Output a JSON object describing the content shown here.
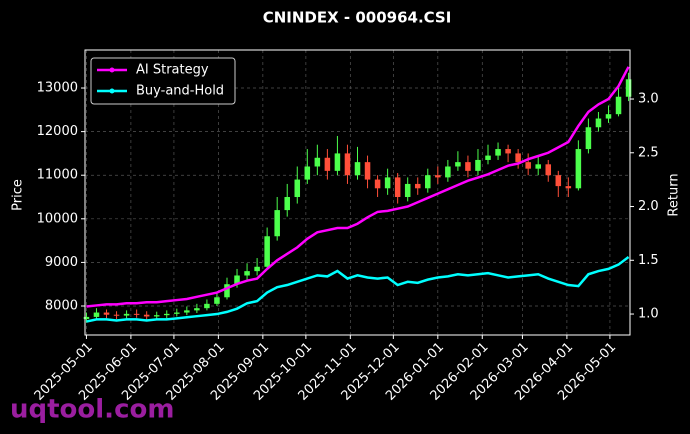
{
  "chart_data": {
    "type": "candlestick",
    "title": "CNINDEX - 000964.CSI",
    "ylabel": "Price",
    "y2label": "Return",
    "watermark": "uqtool.com",
    "x": [
      "2025-05-01",
      "2025-05-08",
      "2025-05-15",
      "2025-05-22",
      "2025-05-29",
      "2025-06-05",
      "2025-06-12",
      "2025-06-19",
      "2025-06-26",
      "2025-07-03",
      "2025-07-10",
      "2025-07-17",
      "2025-07-24",
      "2025-07-31",
      "2025-08-07",
      "2025-08-14",
      "2025-08-21",
      "2025-08-28",
      "2025-09-04",
      "2025-09-11",
      "2025-09-18",
      "2025-09-25",
      "2025-10-02",
      "2025-10-09",
      "2025-10-16",
      "2025-10-23",
      "2025-10-30",
      "2025-11-06",
      "2025-11-13",
      "2025-11-20",
      "2025-11-27",
      "2025-12-04",
      "2025-12-11",
      "2025-12-18",
      "2025-12-25",
      "2026-01-01",
      "2026-01-08",
      "2026-01-15",
      "2026-01-22",
      "2026-01-29",
      "2026-02-05",
      "2026-02-12",
      "2026-02-19",
      "2026-02-26",
      "2026-03-05",
      "2026-03-12",
      "2026-03-19",
      "2026-03-26",
      "2026-04-02",
      "2026-04-09",
      "2026-04-16",
      "2026-04-23",
      "2026-04-30",
      "2026-05-07",
      "2026-05-14"
    ],
    "open": [
      7700,
      7750,
      7850,
      7800,
      7780,
      7820,
      7800,
      7760,
      7790,
      7820,
      7850,
      7900,
      7950,
      8050,
      8200,
      8500,
      8700,
      8800,
      8900,
      9600,
      10200,
      10500,
      10900,
      11200,
      11400,
      11100,
      11500,
      11000,
      11300,
      10900,
      10700,
      10950,
      10500,
      10800,
      10700,
      11000,
      10950,
      11200,
      11300,
      11100,
      11350,
      11450,
      11600,
      11500,
      11300,
      11150,
      11250,
      11000,
      10750,
      10700,
      11600,
      12100,
      12300,
      12400,
      12800
    ],
    "high": [
      7850,
      7950,
      7920,
      7880,
      7900,
      7920,
      7880,
      7870,
      7900,
      7940,
      7990,
      8050,
      8150,
      8320,
      8650,
      8850,
      8980,
      9100,
      9800,
      10500,
      10800,
      11200,
      11600,
      11700,
      11600,
      11900,
      11700,
      11650,
      11450,
      11000,
      11150,
      11050,
      10950,
      10950,
      11150,
      11200,
      11350,
      11550,
      11450,
      11600,
      11700,
      11750,
      11700,
      11600,
      11500,
      11450,
      11350,
      11100,
      10950,
      11800,
      12300,
      12450,
      12600,
      13000,
      13350
    ],
    "low": [
      7620,
      7680,
      7720,
      7700,
      7720,
      7730,
      7680,
      7700,
      7720,
      7760,
      7790,
      7840,
      7900,
      8000,
      8150,
      8420,
      8600,
      8700,
      8850,
      9500,
      10050,
      10350,
      10800,
      11000,
      10900,
      11000,
      10800,
      10900,
      10700,
      10500,
      10550,
      10350,
      10400,
      10550,
      10600,
      10800,
      10850,
      11100,
      10950,
      11000,
      11250,
      11350,
      11300,
      11150,
      11000,
      11000,
      10850,
      10500,
      10500,
      10650,
      11500,
      12000,
      12200,
      12350,
      12700
    ],
    "close": [
      7750,
      7850,
      7800,
      7780,
      7820,
      7800,
      7760,
      7790,
      7820,
      7850,
      7900,
      7950,
      8050,
      8200,
      8500,
      8700,
      8800,
      8900,
      9600,
      10200,
      10500,
      10900,
      11200,
      11400,
      11100,
      11500,
      11000,
      11300,
      10900,
      10700,
      10950,
      10500,
      10800,
      10700,
      11000,
      10950,
      11200,
      11300,
      11100,
      11350,
      11450,
      11600,
      11500,
      11300,
      11150,
      11250,
      11000,
      10750,
      10700,
      11600,
      12100,
      12300,
      12400,
      12800,
      13200
    ],
    "up_color": "#4cff4c",
    "down_color": "#ff4f3a",
    "series": [
      {
        "name": "AI Strategy",
        "color": "#ff00ff",
        "axis": "y2",
        "values": [
          1.07,
          1.08,
          1.09,
          1.09,
          1.1,
          1.1,
          1.11,
          1.11,
          1.12,
          1.13,
          1.14,
          1.16,
          1.18,
          1.2,
          1.24,
          1.28,
          1.31,
          1.33,
          1.42,
          1.5,
          1.56,
          1.62,
          1.7,
          1.76,
          1.78,
          1.8,
          1.8,
          1.84,
          1.9,
          1.95,
          1.96,
          1.98,
          2.0,
          2.04,
          2.08,
          2.12,
          2.16,
          2.2,
          2.24,
          2.27,
          2.3,
          2.34,
          2.38,
          2.4,
          2.44,
          2.47,
          2.5,
          2.55,
          2.6,
          2.75,
          2.88,
          2.95,
          3.0,
          3.12,
          3.3
        ]
      },
      {
        "name": "Buy-and-Hold",
        "color": "#00ffff",
        "axis": "y2",
        "values": [
          0.93,
          0.95,
          0.95,
          0.94,
          0.95,
          0.95,
          0.94,
          0.95,
          0.95,
          0.96,
          0.97,
          0.98,
          0.99,
          1.0,
          1.02,
          1.05,
          1.1,
          1.12,
          1.2,
          1.25,
          1.27,
          1.3,
          1.33,
          1.36,
          1.35,
          1.4,
          1.33,
          1.36,
          1.34,
          1.33,
          1.34,
          1.27,
          1.3,
          1.29,
          1.32,
          1.34,
          1.35,
          1.37,
          1.36,
          1.37,
          1.38,
          1.36,
          1.34,
          1.35,
          1.36,
          1.37,
          1.33,
          1.3,
          1.27,
          1.26,
          1.37,
          1.4,
          1.42,
          1.46,
          1.53
        ]
      }
    ],
    "xlim": [
      "2025-04-30",
      "2026-05-15"
    ],
    "xticks": [
      "2025-05-01",
      "2025-06-01",
      "2025-07-01",
      "2025-08-01",
      "2025-09-01",
      "2025-10-01",
      "2025-11-01",
      "2025-12-01",
      "2026-01-01",
      "2026-02-01",
      "2026-03-01",
      "2026-04-01",
      "2026-05-01"
    ],
    "ylim": [
      7335,
      13872
    ],
    "yticks": [
      8000,
      9000,
      10000,
      11000,
      12000,
      13000
    ],
    "y2lim": [
      0.805,
      3.456
    ],
    "y2ticks": [
      {
        "value": 1,
        "label": "1.0"
      },
      1.5,
      {
        "value": 2,
        "label": "2.0"
      },
      2.5,
      {
        "value": 3,
        "label": "3.0"
      }
    ],
    "grid": true,
    "legend": "upper-left"
  }
}
